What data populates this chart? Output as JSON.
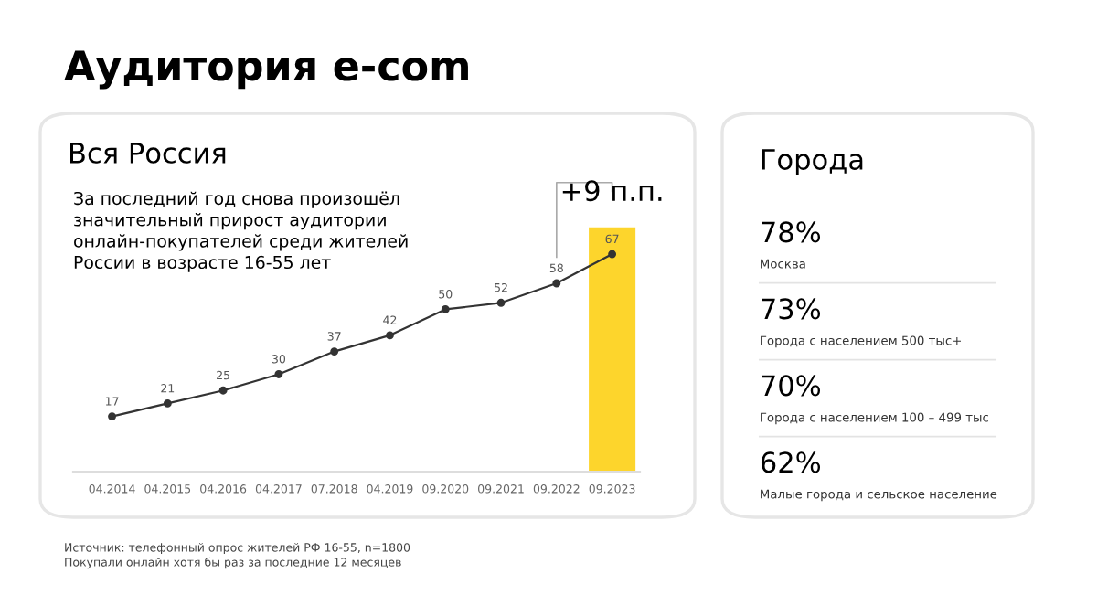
{
  "chart_data": [
    {
      "type": "line",
      "title": "Аудитория e-com",
      "subtitle": "Вся Россия",
      "categories": [
        "04.2014",
        "04.2015",
        "04.2016",
        "04.2017",
        "07.2018",
        "04.2019",
        "09.2020",
        "09.2021",
        "09.2022",
        "09.2023"
      ],
      "series": [
        {
          "color": "#333333",
          "values": [
            17,
            21,
            25,
            30,
            37,
            42,
            50,
            52,
            58,
            67
          ]
        }
      ],
      "marker": "circle",
      "line_style": "solid",
      "data_labels": true,
      "bands": [
        {
          "axis": "x",
          "from": "09.2023",
          "to": "09.2023",
          "color": "#fdd52c"
        }
      ],
      "annotations": [
        "За последний год снова произошёл\nзначительный прирост аудитории\nонлайн-покупателей среди жителей\nРоссии в возрасте 16-55 лет",
        {
          "text": "+9 п.п.",
          "x": "09.2023",
          "y": 67
        },
        "Источник: телефонный опрос жителей РФ 16-55, n=1800",
        "Покупали онлайн хотя бы раз за последние 12 месяцев"
      ]
    },
    {
      "type": "other",
      "title": "Города",
      "annotations": [
        "78%",
        "Москва",
        "73%",
        "Города с населением 500 тыс+",
        "70%",
        "Города с населением 100 – 499 тыс",
        "62%",
        "Малые города и сельское население"
      ]
    }
  ]
}
